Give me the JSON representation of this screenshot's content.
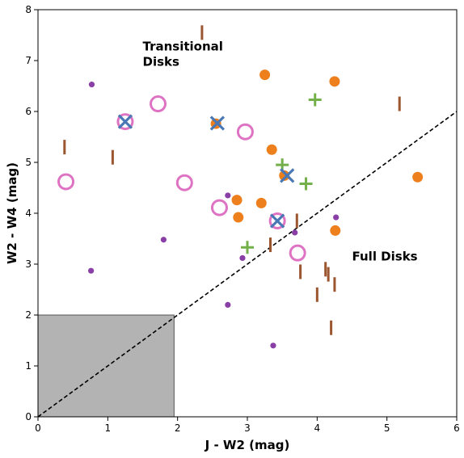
{
  "chart_data": {
    "type": "scatter",
    "xlabel": "J - W2 (mag)",
    "ylabel": "W2 - W4 (mag)",
    "xlim": [
      0,
      6
    ],
    "ylim": [
      0,
      8
    ],
    "xticks": [
      0,
      1,
      2,
      3,
      4,
      5,
      6
    ],
    "yticks": [
      0,
      1,
      2,
      3,
      4,
      5,
      6,
      7,
      8
    ],
    "grid": false,
    "colors": {
      "purple": "#8a3fa6",
      "orange": "#ee7f1d",
      "pink": "#df73c3",
      "blue": "#4a78b4",
      "green": "#74b04a",
      "brown": "#9b5630",
      "shade": "#b3b3b3"
    },
    "shaded_region": {
      "x": [
        0,
        1.95
      ],
      "y": [
        0,
        2
      ]
    },
    "divider_line": {
      "x": [
        0,
        6
      ],
      "y": [
        0,
        6
      ]
    },
    "annotations": [
      {
        "lines": [
          "Transitional",
          "Disks"
        ],
        "x": 1.5,
        "y": 7.2
      },
      {
        "lines": [
          "Full Disks"
        ],
        "x": 4.5,
        "y": 3.07
      }
    ],
    "series": [
      {
        "marker": "small-circle",
        "color": "purple",
        "points": [
          [
            0.77,
            6.53
          ],
          [
            0.76,
            2.87
          ],
          [
            1.8,
            3.48
          ],
          [
            2.72,
            4.35
          ],
          [
            2.72,
            2.2
          ],
          [
            2.93,
            3.12
          ],
          [
            3.68,
            3.62
          ],
          [
            4.27,
            3.92
          ],
          [
            3.37,
            1.4
          ]
        ]
      },
      {
        "marker": "large-circle",
        "color": "orange",
        "points": [
          [
            3.25,
            6.72
          ],
          [
            4.25,
            6.59
          ],
          [
            2.55,
            5.76
          ],
          [
            3.35,
            5.25
          ],
          [
            3.53,
            4.74
          ],
          [
            2.85,
            4.26
          ],
          [
            3.2,
            4.2
          ],
          [
            2.87,
            3.92
          ],
          [
            4.26,
            3.66
          ],
          [
            5.44,
            4.71
          ]
        ]
      },
      {
        "marker": "open-circle",
        "color": "pink",
        "points": [
          [
            1.72,
            6.15
          ],
          [
            1.25,
            5.8
          ],
          [
            2.97,
            5.6
          ],
          [
            0.4,
            4.62
          ],
          [
            2.1,
            4.6
          ],
          [
            2.6,
            4.11
          ],
          [
            3.43,
            3.85
          ],
          [
            3.72,
            3.22
          ]
        ]
      },
      {
        "marker": "x",
        "color": "blue",
        "points": [
          [
            1.25,
            5.8
          ],
          [
            2.57,
            5.77
          ],
          [
            3.57,
            4.74
          ],
          [
            3.43,
            3.85
          ]
        ]
      },
      {
        "marker": "plus",
        "color": "green",
        "points": [
          [
            3.97,
            6.23
          ],
          [
            3.5,
            4.95
          ],
          [
            3.84,
            4.58
          ],
          [
            3.0,
            3.33
          ]
        ]
      },
      {
        "marker": "vbar",
        "color": "brown",
        "points": [
          [
            2.35,
            7.55
          ],
          [
            5.18,
            6.15
          ],
          [
            0.38,
            5.3
          ],
          [
            1.07,
            5.1
          ],
          [
            3.71,
            3.85
          ],
          [
            3.33,
            3.38
          ],
          [
            3.76,
            2.85
          ],
          [
            4.12,
            2.9
          ],
          [
            4.16,
            2.8
          ],
          [
            4.25,
            2.6
          ],
          [
            4.0,
            2.4
          ],
          [
            4.2,
            1.75
          ]
        ]
      }
    ]
  }
}
